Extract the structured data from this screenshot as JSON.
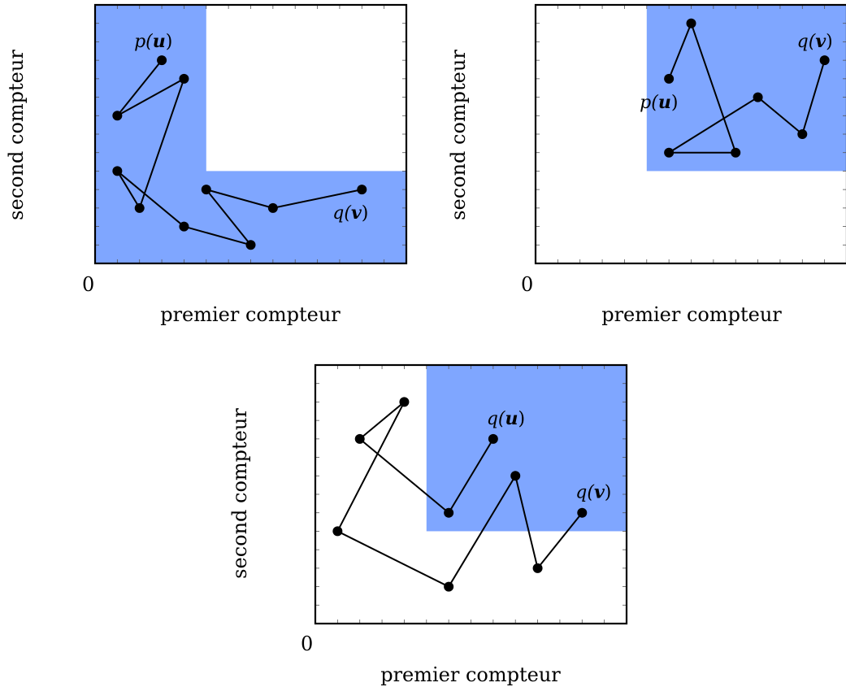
{
  "colors": {
    "region": "#7fa6ff",
    "line": "#000000",
    "frame": "#000000"
  },
  "diagrams": [
    {
      "axes": {
        "origin_label": "0",
        "xlabel": "premier compteur",
        "ylabel": "second compteur",
        "xlim": [
          0,
          14
        ],
        "ylim": [
          0,
          14
        ]
      },
      "region": {
        "shape": "L",
        "corner": [
          5,
          5
        ]
      },
      "path": [
        [
          3,
          11
        ],
        [
          1,
          8
        ],
        [
          4,
          10
        ],
        [
          2,
          3
        ],
        [
          1,
          5
        ],
        [
          4,
          2
        ],
        [
          7,
          1
        ],
        [
          5,
          4
        ],
        [
          8,
          3
        ],
        [
          12,
          4
        ]
      ],
      "labels": [
        {
          "text": "p(u)",
          "at": 0,
          "pos": "above-left"
        },
        {
          "text": "q(v)",
          "at": 9,
          "pos": "below"
        }
      ]
    },
    {
      "axes": {
        "origin_label": "0",
        "xlabel": "premier compteur",
        "ylabel": "second compteur",
        "xlim": [
          0,
          14
        ],
        "ylim": [
          0,
          14
        ]
      },
      "region": {
        "shape": "upper-right",
        "corner": [
          5,
          5
        ]
      },
      "path": [
        [
          6,
          10
        ],
        [
          7,
          13
        ],
        [
          9,
          6
        ],
        [
          6,
          6
        ],
        [
          10,
          9
        ],
        [
          12,
          7
        ],
        [
          13,
          11
        ]
      ],
      "labels": [
        {
          "text": "p(u)",
          "at": 0,
          "pos": "below"
        },
        {
          "text": "q(v)",
          "at": 6,
          "pos": "above-left"
        }
      ]
    },
    {
      "axes": {
        "origin_label": "0",
        "xlabel": "premier compteur",
        "ylabel": "second compteur",
        "xlim": [
          0,
          14
        ],
        "ylim": [
          0,
          14
        ]
      },
      "region": {
        "shape": "upper-right",
        "corner": [
          5,
          5
        ]
      },
      "path": [
        [
          8,
          10
        ],
        [
          6,
          6
        ],
        [
          2,
          10
        ],
        [
          4,
          12
        ],
        [
          1,
          5
        ],
        [
          6,
          2
        ],
        [
          9,
          8
        ],
        [
          10,
          3
        ],
        [
          12,
          6
        ]
      ],
      "labels": [
        {
          "text": "q(u)",
          "at": 0,
          "pos": "above"
        },
        {
          "text": "q(v)",
          "at": 8,
          "pos": "above"
        }
      ]
    }
  ]
}
